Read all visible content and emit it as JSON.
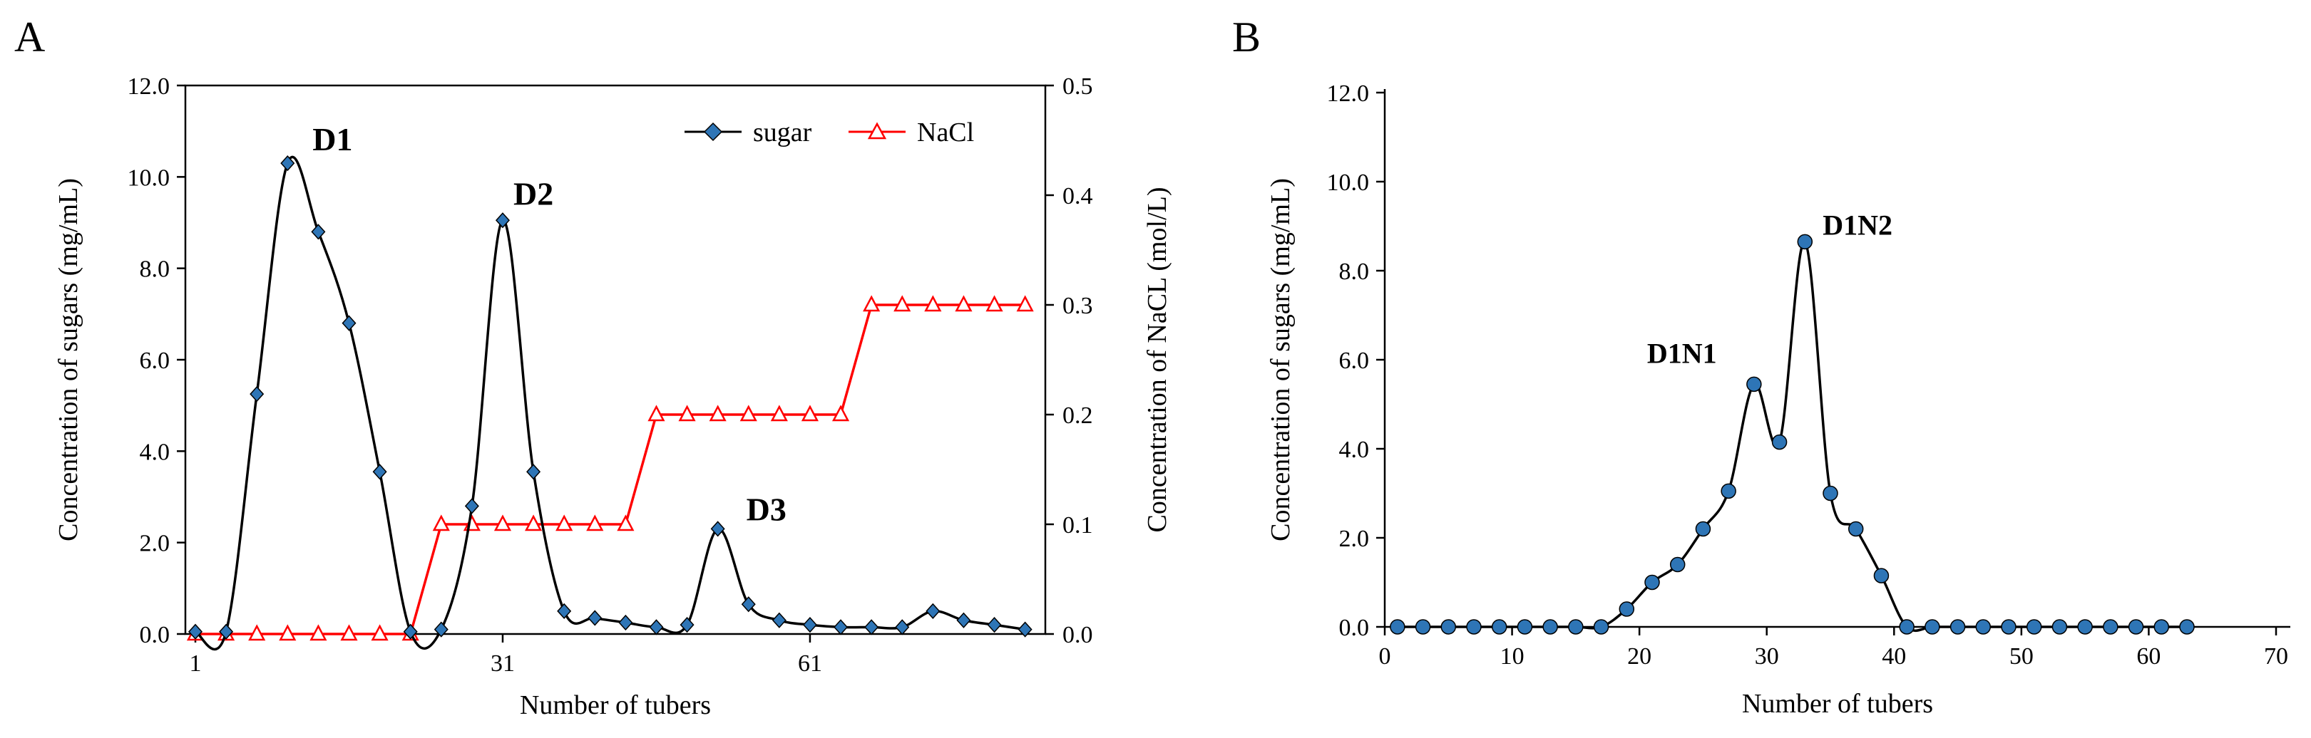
{
  "chart_data": [
    {
      "panel": "A",
      "type": "line",
      "title": "",
      "xlabel": "Number of tubers",
      "ylabel": "Concentration of sugars (mg/mL)",
      "y2label": "Concentration of  NaCL (mol/L)",
      "xlim": [
        1,
        83
      ],
      "xticks": [
        1,
        31,
        61
      ],
      "ylim": [
        0,
        12
      ],
      "yticks": [
        "0.0",
        "2.0",
        "4.0",
        "6.0",
        "8.0",
        "10.0",
        "12.0"
      ],
      "y2lim": [
        0,
        0.5
      ],
      "y2ticks": [
        "0.0",
        "0.1",
        "0.2",
        "0.3",
        "0.4",
        "0.5"
      ],
      "grid": false,
      "legend": {
        "position": "top-right",
        "entries": [
          "sugar",
          "NaCl"
        ]
      },
      "series": [
        {
          "name": "sugar",
          "axis": "left",
          "color": "#000000",
          "marker_color": "#2e75b6",
          "marker": "diamond",
          "x": [
            1,
            4,
            7,
            10,
            13,
            16,
            19,
            22,
            25,
            28,
            31,
            34,
            37,
            40,
            43,
            46,
            49,
            52,
            55,
            58,
            61,
            64,
            67,
            70,
            73,
            76,
            79,
            82
          ],
          "y": [
            0.05,
            0.05,
            5.25,
            10.3,
            8.8,
            6.8,
            3.55,
            0.05,
            0.1,
            2.8,
            9.05,
            3.55,
            0.5,
            0.35,
            0.25,
            0.15,
            0.2,
            2.3,
            0.65,
            0.3,
            0.2,
            0.15,
            0.15,
            0.15,
            0.5,
            0.3,
            0.2,
            0.1
          ]
        },
        {
          "name": "NaCl",
          "axis": "right",
          "color": "#ff0000",
          "marker": "triangle-open",
          "x": [
            1,
            4,
            7,
            10,
            13,
            16,
            19,
            22,
            25,
            28,
            31,
            34,
            37,
            40,
            43,
            46,
            49,
            52,
            55,
            58,
            61,
            64,
            67,
            70,
            73,
            76,
            79,
            82
          ],
          "y": [
            0,
            0,
            0,
            0,
            0,
            0,
            0,
            0,
            0.1,
            0.1,
            0.1,
            0.1,
            0.1,
            0.1,
            0.1,
            0.2,
            0.2,
            0.2,
            0.2,
            0.2,
            0.2,
            0.2,
            0.3,
            0.3,
            0.3,
            0.3,
            0.3,
            0.3
          ]
        }
      ],
      "annotations": [
        {
          "text": "D1",
          "x": 10,
          "y": 10.3
        },
        {
          "text": "D2",
          "x": 31,
          "y": 9.05
        },
        {
          "text": "D3",
          "x": 52,
          "y": 2.3
        }
      ]
    },
    {
      "panel": "B",
      "type": "line",
      "title": "",
      "xlabel": "Number of tubers",
      "ylabel": "Concentration of sugars (mg/mL)",
      "xlim": [
        0,
        70
      ],
      "xticks": [
        "0",
        "10",
        "20",
        "30",
        "40",
        "50",
        "60",
        "70"
      ],
      "ylim": [
        0,
        12
      ],
      "yticks": [
        "0.0",
        "2.0",
        "4.0",
        "6.0",
        "8.0",
        "10.0",
        "12.0"
      ],
      "grid": false,
      "series": [
        {
          "name": "sugar",
          "color": "#000000",
          "marker_color": "#2e75b6",
          "marker": "circle",
          "x": [
            1,
            3,
            5,
            7,
            9,
            11,
            13,
            15,
            17,
            19,
            21,
            23,
            25,
            27,
            29,
            31,
            33,
            35,
            37,
            39,
            41,
            43,
            45,
            47,
            49,
            51,
            53,
            55,
            57,
            59,
            61,
            63
          ],
          "y": [
            0,
            0,
            0,
            0,
            0,
            0,
            0,
            0,
            0,
            0.4,
            1.0,
            1.4,
            2.2,
            3.05,
            5.45,
            4.15,
            8.65,
            3.0,
            2.2,
            1.15,
            0,
            0,
            0,
            0,
            0,
            0,
            0,
            0,
            0,
            0,
            0,
            0
          ]
        }
      ],
      "annotations": [
        {
          "text": "D1N1",
          "x": 29,
          "y": 5.45
        },
        {
          "text": "D1N2",
          "x": 33,
          "y": 8.65
        }
      ]
    }
  ]
}
